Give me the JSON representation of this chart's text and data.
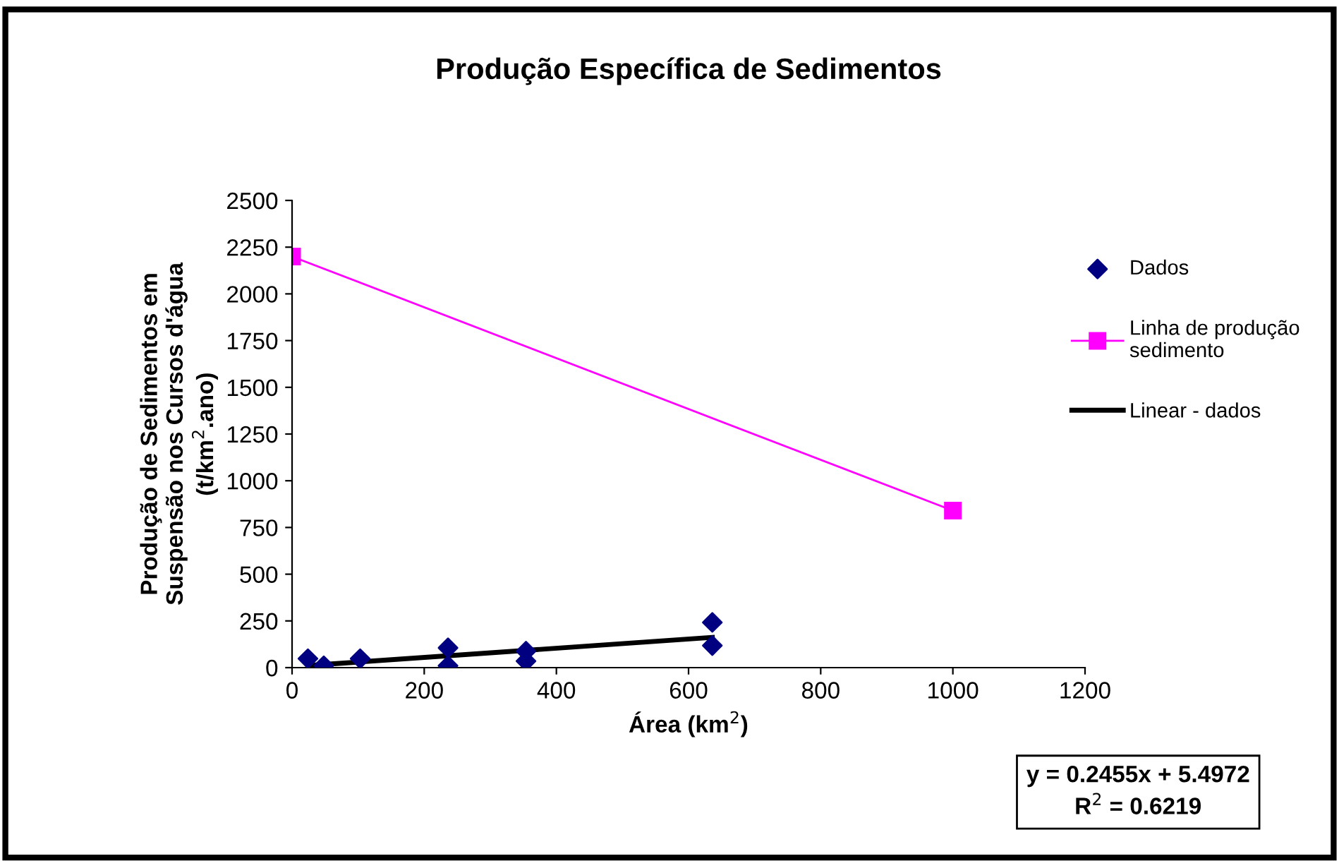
{
  "chart_data": {
    "type": "scatter",
    "title": "Produção Específica de Sedimentos",
    "xlabel": "Área (km$^{2}$)",
    "ylabel": "Produção de Sedimentos em\nSuspensão nos Cursos d'água\n(t/km$^{2}$.ano)",
    "series": [
      {
        "name": "Dados",
        "color": "#000080",
        "marker": "diamond",
        "x": [
          24,
          48,
          103,
          236,
          236,
          354,
          354,
          636,
          636
        ],
        "values": [
          48,
          10,
          48,
          106,
          10,
          88,
          35,
          242,
          118
        ]
      },
      {
        "name": "Linha de produção\nsedimento",
        "type": "line",
        "color": "#ff00ff",
        "marker": "square",
        "x": [
          0,
          1000
        ],
        "values": [
          2200,
          840
        ]
      },
      {
        "name": "Linear - dados",
        "type": "line",
        "color": "#000000",
        "marker": "none",
        "x": [
          24,
          636
        ],
        "values": [
          11,
          162
        ]
      }
    ],
    "xlim": [
      0,
      1200
    ],
    "xticks": [
      0,
      200,
      400,
      600,
      800,
      1000,
      1200
    ],
    "ylim": [
      0,
      2500
    ],
    "yticks": [
      0,
      250,
      500,
      750,
      1000,
      1250,
      1500,
      1750,
      2000,
      2250,
      2500
    ],
    "grid": false,
    "legend": "right",
    "annotations": [
      "y = 0.2455x + 5.4972\nR$^{2}$ = 0.6219"
    ]
  }
}
